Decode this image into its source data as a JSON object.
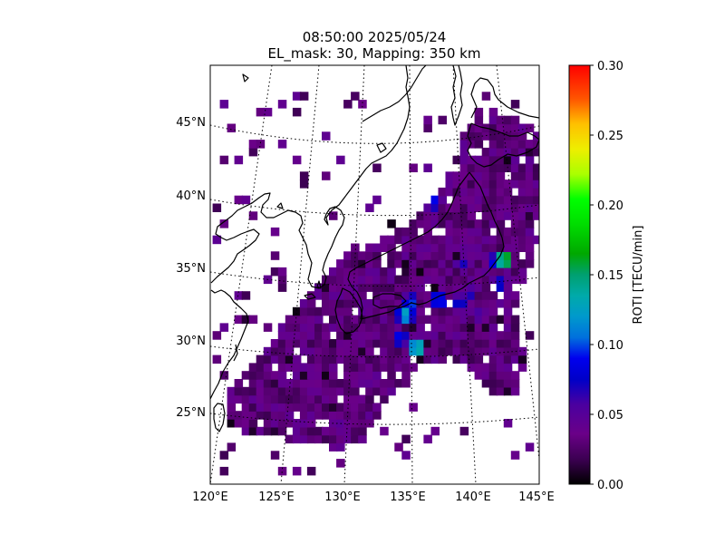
{
  "title": {
    "line1": "08:50:00 2025/05/24",
    "line2": "EL_mask: 30, Mapping: 350 km"
  },
  "map": {
    "lon_range": [
      120,
      145
    ],
    "lat_range": [
      20,
      49
    ],
    "lon_ticks": [
      "120°E",
      "125°E",
      "130°E",
      "135°E",
      "140°E",
      "145°E"
    ],
    "lat_ticks": [
      "25°N",
      "30°N",
      "35°N",
      "40°N",
      "45°N"
    ],
    "graticule": "dotted",
    "projection": "curved-conic",
    "background": "#ffffff",
    "coastline_color": "#000000"
  },
  "colorbar": {
    "label": "ROTI [TECU/min]",
    "ticks": [
      "0.00",
      "0.05",
      "0.10",
      "0.15",
      "0.20",
      "0.25",
      "0.30"
    ],
    "vmin": 0.0,
    "vmax": 0.3,
    "colormap": "nipy_spectral-like"
  },
  "chart_data": {
    "type": "heatmap",
    "title": "08:50:00 2025/05/24 EL_mask: 30, Mapping: 350 km",
    "colorbar_label": "ROTI [TECU/min]",
    "value_range": [
      0.0,
      0.3
    ],
    "typical_background_value": 0.03,
    "hotspots": [
      {
        "lon": 135.7,
        "lat": 29.5,
        "roti": 0.15
      },
      {
        "lon": 134.4,
        "lat": 30.2,
        "roti": 0.09
      },
      {
        "lon": 134.8,
        "lat": 31.8,
        "roti": 0.13
      },
      {
        "lon": 135.2,
        "lat": 32.6,
        "roti": 0.1
      },
      {
        "lon": 137.3,
        "lat": 32.8,
        "roti": 0.1
      },
      {
        "lon": 138.9,
        "lat": 32.6,
        "roti": 0.08
      },
      {
        "lon": 139.6,
        "lat": 33.2,
        "roti": 0.07
      },
      {
        "lon": 140.4,
        "lat": 31.8,
        "roti": 0.06
      },
      {
        "lon": 139.1,
        "lat": 35.3,
        "roti": 0.07
      },
      {
        "lon": 141.6,
        "lat": 35.4,
        "roti": 0.09
      },
      {
        "lon": 142.3,
        "lat": 35.6,
        "roti": 0.18
      },
      {
        "lon": 141.9,
        "lat": 33.9,
        "roti": 0.08
      },
      {
        "lon": 136.9,
        "lat": 39.6,
        "roti": 0.09
      },
      {
        "lon": 126.3,
        "lat": 27.8,
        "roti": 0.05
      },
      {
        "lon": 129.9,
        "lat": 24.1,
        "roti": 0.05
      }
    ]
  }
}
